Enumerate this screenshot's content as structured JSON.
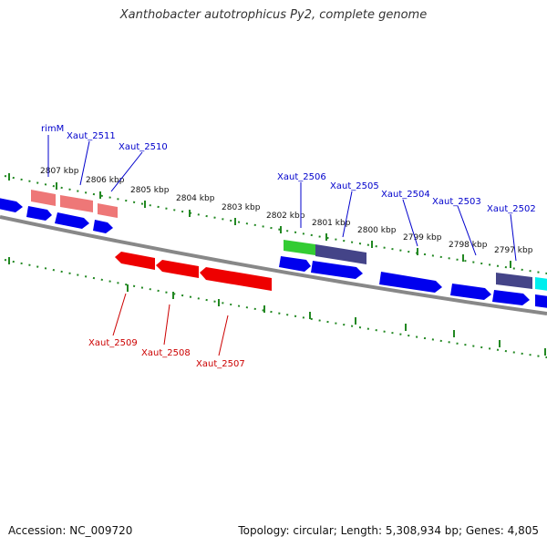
{
  "title": "Xanthobacter autotrophicus Py2, complete genome",
  "footer": {
    "accession": "Accession: NC_009720",
    "summary": "Topology: circular; Length: 5,308,934 bp; Genes: 4,805"
  },
  "ruler": {
    "unit": "kbp",
    "ticks": [
      {
        "kbp": 2807,
        "label": "2807 kbp"
      },
      {
        "kbp": 2806,
        "label": "2806 kbp"
      },
      {
        "kbp": 2805,
        "label": "2805 kbp"
      },
      {
        "kbp": 2804,
        "label": "2804 kbp"
      },
      {
        "kbp": 2803,
        "label": "2803 kbp"
      },
      {
        "kbp": 2802,
        "label": "2802 kbp"
      },
      {
        "kbp": 2801,
        "label": "2801 kbp"
      },
      {
        "kbp": 2800,
        "label": "2800 kbp"
      },
      {
        "kbp": 2799,
        "label": "2799 kbp"
      },
      {
        "kbp": 2798,
        "label": "2798 kbp"
      },
      {
        "kbp": 2797,
        "label": "2797 kbp"
      }
    ]
  },
  "colors": {
    "forward_gene": "#0000ee",
    "reverse_gene": "#ee0000",
    "rna_gene": "#ee7777",
    "highlight_green": "#33cc33",
    "highlight_purple": "#444488",
    "highlight_cyan": "#00eeee",
    "backbone": "#888888",
    "tick_green": "#228822",
    "label_forward": "#0000cc",
    "label_reverse": "#cc0000"
  },
  "labels": {
    "forward": [
      "rimM",
      "Xaut_2511",
      "Xaut_2510",
      "Xaut_2506",
      "Xaut_2505",
      "Xaut_2504",
      "Xaut_2503",
      "Xaut_2502"
    ],
    "reverse": [
      "Xaut_2509",
      "Xaut_2508",
      "Xaut_2507"
    ]
  }
}
